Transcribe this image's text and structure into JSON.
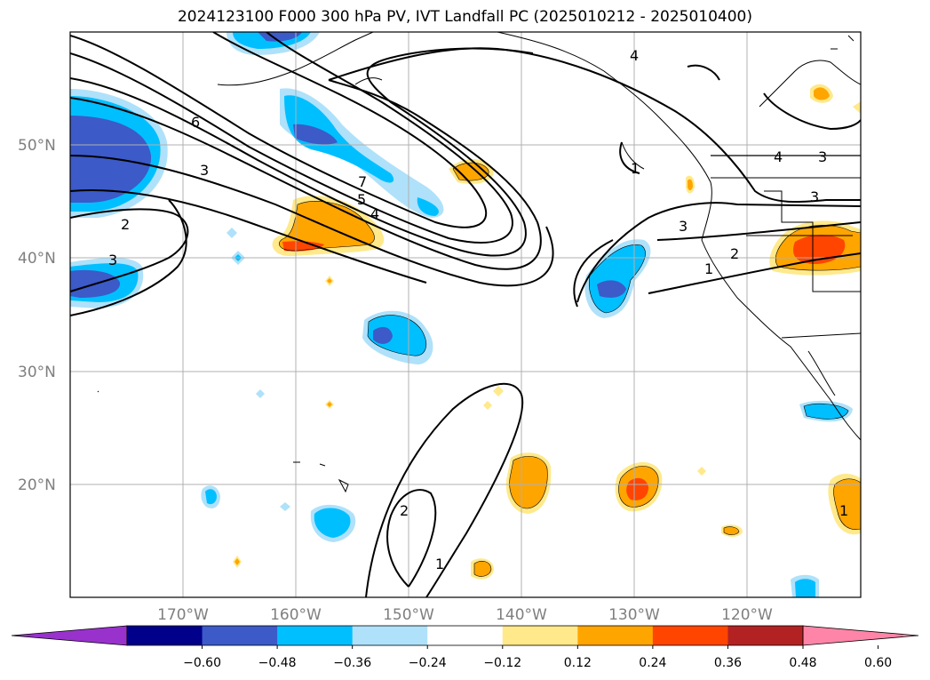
{
  "title": "2024123100 F000 300 hPa PV, IVT Landfall PC (2025010212 - 2025010400)",
  "map": {
    "lat_labels": [
      {
        "text": "50°N",
        "lat": 50
      },
      {
        "text": "40°N",
        "lat": 40
      },
      {
        "text": "30°N",
        "lat": 30
      },
      {
        "text": "20°N",
        "lat": 20
      }
    ],
    "lon_labels": [
      {
        "text": "170°W",
        "lon": -170
      },
      {
        "text": "160°W",
        "lon": -160
      },
      {
        "text": "150°W",
        "lon": -150
      },
      {
        "text": "140°W",
        "lon": -140
      },
      {
        "text": "130°W",
        "lon": -130
      },
      {
        "text": "120°W",
        "lon": -120
      }
    ],
    "extent": {
      "lon": [
        -180,
        -110
      ],
      "lat": [
        10,
        60
      ]
    },
    "contour_labels": [
      "1",
      "2",
      "3",
      "4",
      "5",
      "6",
      "7"
    ]
  },
  "colorbar": {
    "ticks": [
      "−0.60",
      "−0.48",
      "−0.36",
      "−0.24",
      "−0.12",
      "0.12",
      "0.24",
      "0.36",
      "0.48",
      "0.60"
    ],
    "colors": [
      "#9932cc",
      "#00008b",
      "#3c5ac8",
      "#00bfff",
      "#afe1fa",
      "#ffffff",
      "#ffe98a",
      "#ffa500",
      "#ff4500",
      "#b22222",
      "#ff85a8"
    ]
  }
}
